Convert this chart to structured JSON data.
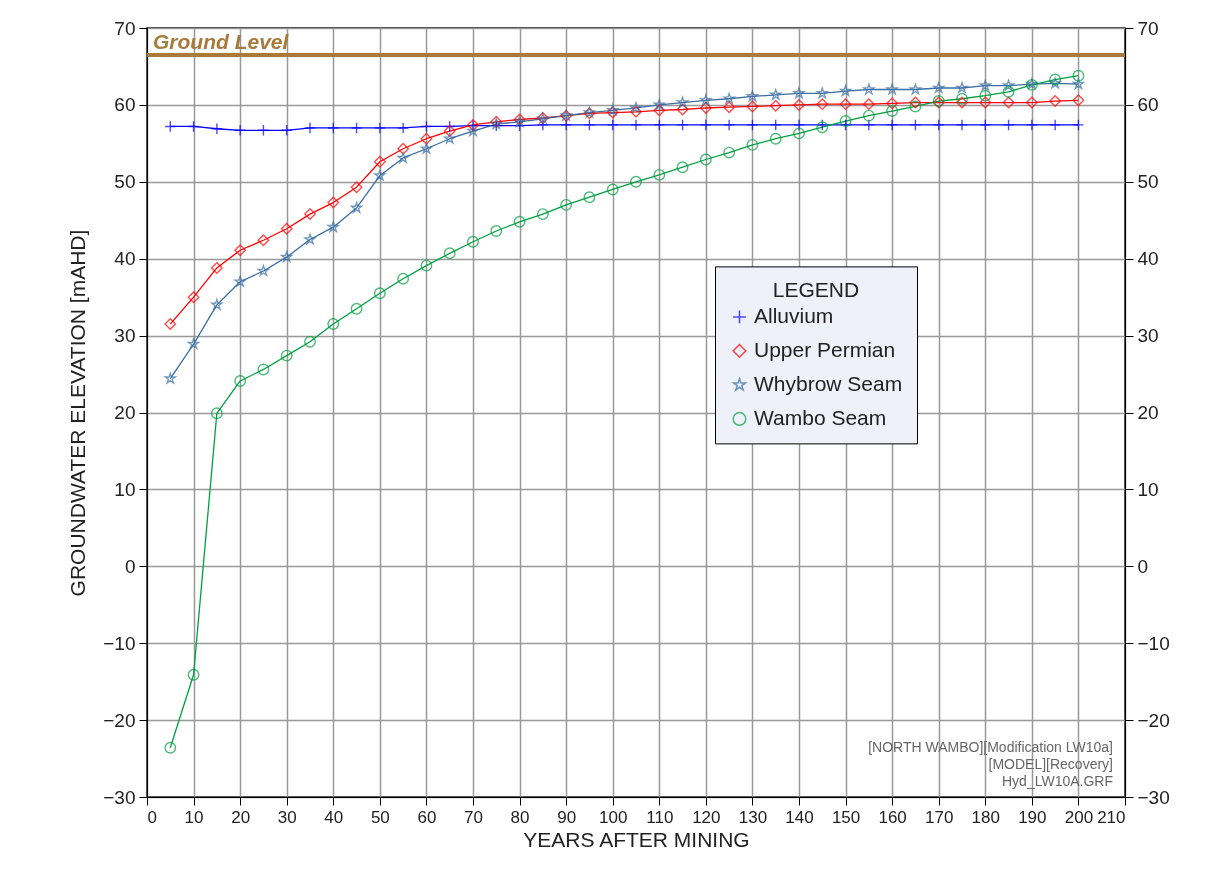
{
  "chart_data": {
    "type": "line",
    "xlabel": "YEARS AFTER MINING",
    "ylabel": "GROUNDWATER ELEVATION  [mAHD]",
    "legend_title": "LEGEND",
    "legend": "right",
    "grid": true,
    "x": [
      5,
      10,
      15,
      20,
      25,
      30,
      35,
      40,
      45,
      50,
      55,
      60,
      65,
      70,
      75,
      80,
      85,
      90,
      95,
      100,
      105,
      110,
      115,
      120,
      125,
      130,
      135,
      140,
      145,
      150,
      155,
      160,
      165,
      170,
      175,
      180,
      185,
      190,
      195,
      200
    ],
    "xlim": [
      0,
      210
    ],
    "xticks": [
      0,
      10,
      20,
      30,
      40,
      50,
      60,
      70,
      80,
      90,
      100,
      110,
      120,
      130,
      140,
      150,
      160,
      170,
      180,
      190,
      200,
      210
    ],
    "ylim": [
      -30,
      70
    ],
    "yticks": [
      -30,
      -20,
      -10,
      0,
      10,
      20,
      30,
      40,
      50,
      60,
      70
    ],
    "y2lim": [
      -30,
      70
    ],
    "y2ticks": [
      -30,
      -20,
      -10,
      0,
      10,
      20,
      30,
      40,
      50,
      60,
      70
    ],
    "series": [
      {
        "name": "Alluvium",
        "color": "#0000ff",
        "marker": "cross",
        "values": [
          57.2,
          57.2,
          56.9,
          56.7,
          56.7,
          56.7,
          57.0,
          57.0,
          57.0,
          57.0,
          57.0,
          57.2,
          57.2,
          57.3,
          57.3,
          57.3,
          57.4,
          57.4,
          57.4,
          57.4,
          57.4,
          57.4,
          57.4,
          57.4,
          57.4,
          57.4,
          57.4,
          57.4,
          57.4,
          57.4,
          57.4,
          57.4,
          57.4,
          57.4,
          57.4,
          57.4,
          57.4,
          57.4,
          57.4,
          57.4
        ]
      },
      {
        "name": "Upper Permian",
        "color": "#ff0000",
        "marker": "diamond",
        "values": [
          31.5,
          35.0,
          38.8,
          41.1,
          42.4,
          43.9,
          45.8,
          47.3,
          49.3,
          52.6,
          54.3,
          55.6,
          56.6,
          57.4,
          57.8,
          58.1,
          58.3,
          58.6,
          58.9,
          59.0,
          59.1,
          59.3,
          59.4,
          59.6,
          59.7,
          59.8,
          59.9,
          60.0,
          60.1,
          60.1,
          60.1,
          60.2,
          60.3,
          60.3,
          60.3,
          60.3,
          60.3,
          60.3,
          60.5,
          60.6
        ]
      },
      {
        "name": "Whybrow Seam",
        "color": "#3a6ea5",
        "marker": "star",
        "values": [
          24.4,
          28.9,
          34.0,
          37.0,
          38.4,
          40.2,
          42.5,
          44.1,
          46.6,
          50.8,
          53.1,
          54.3,
          55.6,
          56.6,
          57.5,
          57.8,
          58.2,
          58.6,
          59.0,
          59.3,
          59.6,
          60.0,
          60.3,
          60.6,
          60.8,
          61.1,
          61.3,
          61.5,
          61.5,
          61.8,
          62.0,
          62.0,
          62.0,
          62.2,
          62.2,
          62.5,
          62.5,
          62.7,
          62.8,
          62.7
        ]
      },
      {
        "name": "Wambo Seam",
        "color": "#00a040",
        "marker": "circle",
        "values": [
          -23.6,
          -14.1,
          19.9,
          24.1,
          25.6,
          27.4,
          29.2,
          31.5,
          33.5,
          35.5,
          37.4,
          39.1,
          40.7,
          42.2,
          43.6,
          44.8,
          45.8,
          47.0,
          48.0,
          49.0,
          50.0,
          50.9,
          51.9,
          52.9,
          53.8,
          54.8,
          55.6,
          56.3,
          57.1,
          57.9,
          58.6,
          59.2,
          59.8,
          60.5,
          60.8,
          61.2,
          61.7,
          62.6,
          63.3,
          63.8
        ]
      }
    ],
    "ref_lines": [
      {
        "axis": "y",
        "value": 66.5,
        "label": "Ground Level",
        "color": "#a87a3c"
      }
    ],
    "annotations": [
      "[NORTH WAMBO][Modification LW10a]",
      "[MODEL][Recovery]",
      "Hyd_LW10A.GRF"
    ]
  }
}
